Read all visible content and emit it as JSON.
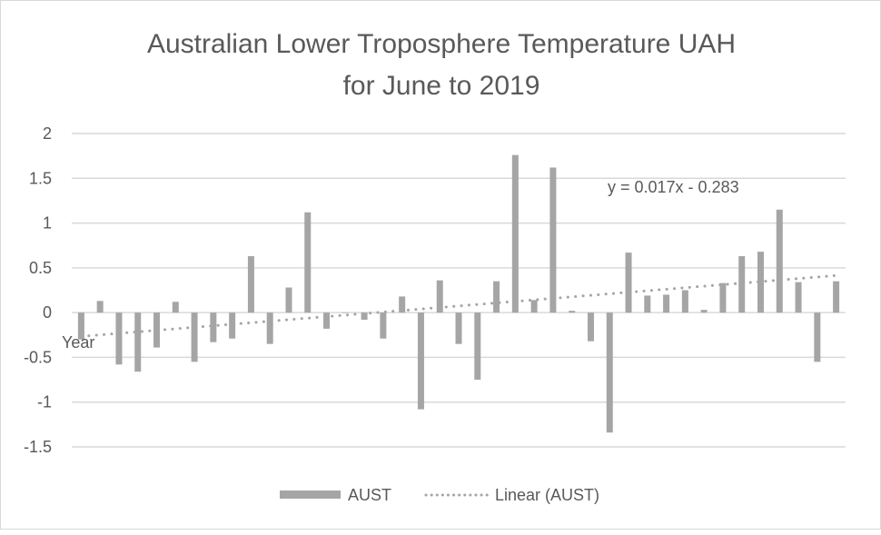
{
  "chart_data": {
    "type": "bar",
    "title": "Australian Lower Troposphere Temperature UAH",
    "subtitle": "for June to 2019",
    "xlabel": "Year",
    "ylabel": "",
    "ylim": [
      -1.5,
      2
    ],
    "yticks": [
      "2",
      "1.5",
      "1",
      "0.5",
      "0",
      "-0.5",
      "-1",
      "-1.5"
    ],
    "ytick_values": [
      2,
      1.5,
      1,
      0.5,
      0,
      -0.5,
      -1,
      -1.5
    ],
    "grid": true,
    "legend_position": "bottom",
    "colors": {
      "bar": "#a5a5a5",
      "trend": "#a5a5a5",
      "grid": "#d9d9d9",
      "text": "#595959"
    },
    "series": [
      {
        "name": "AUST",
        "type": "bar",
        "values": [
          -0.3,
          0.13,
          -0.58,
          -0.66,
          -0.39,
          0.12,
          -0.55,
          -0.33,
          -0.29,
          0.63,
          -0.35,
          0.28,
          1.12,
          -0.18,
          0.0,
          -0.08,
          -0.29,
          0.18,
          -1.08,
          0.36,
          -0.35,
          -0.75,
          0.35,
          1.76,
          0.14,
          1.62,
          0.02,
          -0.32,
          -1.34,
          0.67,
          0.19,
          0.2,
          0.25,
          0.03,
          0.33,
          0.63,
          0.68,
          1.15,
          0.34,
          -0.55,
          0.35
        ]
      },
      {
        "name": "Linear (AUST)",
        "type": "trendline",
        "slope": 0.017,
        "intercept": -0.283
      }
    ],
    "annotations": [
      "y = 0.017x - 0.283"
    ]
  }
}
